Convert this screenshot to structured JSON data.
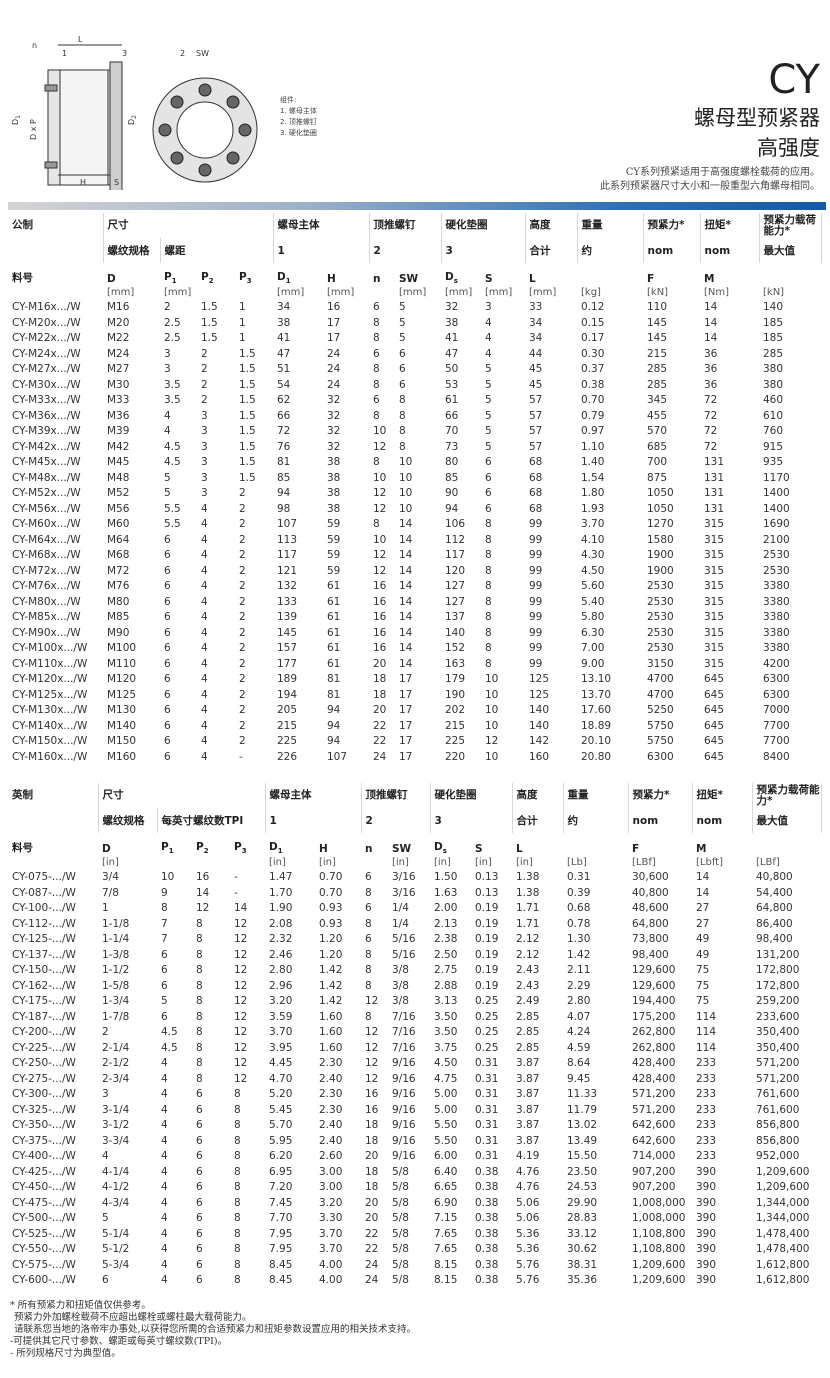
{
  "header": {
    "title": "CY",
    "subtitle": [
      "螺母型预紧器",
      "高强度"
    ],
    "description": [
      "CY系列预紧适用于高强度螺栓载荷的应用。",
      "此系列预紧器尺寸大小和一般重型六角螺母相同。"
    ]
  },
  "diagram": {
    "labels": {
      "n": "n",
      "one": "1",
      "L": "L",
      "three": "3",
      "two": "2",
      "SW": "SW",
      "D1": {
        "t": "D",
        "sub": "1"
      },
      "DxP": "D x P",
      "D2": {
        "t": "D",
        "sub": "2"
      },
      "H": "H",
      "S": "S"
    },
    "legend": [
      "组件:",
      "1.  螺母主体",
      "2.  顶推螺钉",
      "3.  硬化垫圈"
    ]
  },
  "metric": {
    "group_headers": [
      "公制",
      "尺寸",
      "螺母主体",
      "顶推螺钉",
      "硬化垫圈",
      "高度",
      "重量",
      "预紧力*",
      "扭矩*",
      "预紧力载荷能力*"
    ],
    "sub_headers": [
      "螺纹规格",
      "螺距",
      "1",
      "2",
      "3",
      "合计",
      "约",
      "nom",
      "nom",
      "最大值"
    ],
    "symbols": [
      {
        "t": "料号"
      },
      {
        "t": "D"
      },
      {
        "t": "P",
        "sub": "1"
      },
      {
        "t": "P",
        "sub": "2"
      },
      {
        "t": "P",
        "sub": "3"
      },
      {
        "t": "D",
        "sub": "1"
      },
      {
        "t": "H"
      },
      {
        "t": "n"
      },
      {
        "t": "SW"
      },
      {
        "t": "D",
        "sub": "s"
      },
      {
        "t": "S"
      },
      {
        "t": "L"
      },
      null,
      {
        "t": "F"
      },
      {
        "t": "M"
      },
      null
    ],
    "units": [
      null,
      "[mm]",
      "[mm]",
      null,
      null,
      "[mm]",
      "[mm]",
      null,
      "[mm]",
      "[mm]",
      "[mm]",
      "[mm]",
      "[kg]",
      "[kN]",
      "[Nm]",
      "[kN]"
    ],
    "rows": [
      [
        "CY-M16x.../W",
        "M16",
        "2",
        "1.5",
        "1",
        "34",
        "16",
        "6",
        "5",
        "32",
        "3",
        "33",
        "0.12",
        "110",
        "14",
        "140"
      ],
      [
        "CY-M20x.../W",
        "M20",
        "2.5",
        "1.5",
        "1",
        "38",
        "17",
        "8",
        "5",
        "38",
        "4",
        "34",
        "0.15",
        "145",
        "14",
        "185"
      ],
      [
        "CY-M22x.../W",
        "M22",
        "2.5",
        "1.5",
        "1",
        "41",
        "17",
        "8",
        "5",
        "41",
        "4",
        "34",
        "0.17",
        "145",
        "14",
        "185"
      ],
      [
        "CY-M24x.../W",
        "M24",
        "3",
        "2",
        "1.5",
        "47",
        "24",
        "6",
        "6",
        "47",
        "4",
        "44",
        "0.30",
        "215",
        "36",
        "285"
      ],
      [
        "CY-M27x.../W",
        "M27",
        "3",
        "2",
        "1.5",
        "51",
        "24",
        "8",
        "6",
        "50",
        "5",
        "45",
        "0.37",
        "285",
        "36",
        "380"
      ],
      [
        "CY-M30x.../W",
        "M30",
        "3.5",
        "2",
        "1.5",
        "54",
        "24",
        "8",
        "6",
        "53",
        "5",
        "45",
        "0.38",
        "285",
        "36",
        "380"
      ],
      [
        "CY-M33x.../W",
        "M33",
        "3.5",
        "2",
        "1.5",
        "62",
        "32",
        "6",
        "8",
        "61",
        "5",
        "57",
        "0.70",
        "345",
        "72",
        "460"
      ],
      [
        "CY-M36x.../W",
        "M36",
        "4",
        "3",
        "1.5",
        "66",
        "32",
        "8",
        "8",
        "66",
        "5",
        "57",
        "0.79",
        "455",
        "72",
        "610"
      ],
      [
        "CY-M39x.../W",
        "M39",
        "4",
        "3",
        "1.5",
        "72",
        "32",
        "10",
        "8",
        "70",
        "5",
        "57",
        "0.97",
        "570",
        "72",
        "760"
      ],
      [
        "CY-M42x.../W",
        "M42",
        "4.5",
        "3",
        "1.5",
        "76",
        "32",
        "12",
        "8",
        "73",
        "5",
        "57",
        "1.10",
        "685",
        "72",
        "915"
      ],
      [
        "CY-M45x.../W",
        "M45",
        "4.5",
        "3",
        "1.5",
        "81",
        "38",
        "8",
        "10",
        "80",
        "6",
        "68",
        "1.40",
        "700",
        "131",
        "935"
      ],
      [
        "CY-M48x.../W",
        "M48",
        "5",
        "3",
        "1.5",
        "85",
        "38",
        "10",
        "10",
        "85",
        "6",
        "68",
        "1.54",
        "875",
        "131",
        "1170"
      ],
      [
        "CY-M52x.../W",
        "M52",
        "5",
        "3",
        "2",
        "94",
        "38",
        "12",
        "10",
        "90",
        "6",
        "68",
        "1.80",
        "1050",
        "131",
        "1400"
      ],
      [
        "CY-M56x.../W",
        "M56",
        "5.5",
        "4",
        "2",
        "98",
        "38",
        "12",
        "10",
        "94",
        "6",
        "68",
        "1.93",
        "1050",
        "131",
        "1400"
      ],
      [
        "CY-M60x.../W",
        "M60",
        "5.5",
        "4",
        "2",
        "107",
        "59",
        "8",
        "14",
        "106",
        "8",
        "99",
        "3.70",
        "1270",
        "315",
        "1690"
      ],
      [
        "CY-M64x.../W",
        "M64",
        "6",
        "4",
        "2",
        "113",
        "59",
        "10",
        "14",
        "112",
        "8",
        "99",
        "4.10",
        "1580",
        "315",
        "2100"
      ],
      [
        "CY-M68x.../W",
        "M68",
        "6",
        "4",
        "2",
        "117",
        "59",
        "12",
        "14",
        "117",
        "8",
        "99",
        "4.30",
        "1900",
        "315",
        "2530"
      ],
      [
        "CY-M72x.../W",
        "M72",
        "6",
        "4",
        "2",
        "121",
        "59",
        "12",
        "14",
        "120",
        "8",
        "99",
        "4.50",
        "1900",
        "315",
        "2530"
      ],
      [
        "CY-M76x.../W",
        "M76",
        "6",
        "4",
        "2",
        "132",
        "61",
        "16",
        "14",
        "127",
        "8",
        "99",
        "5.60",
        "2530",
        "315",
        "3380"
      ],
      [
        "CY-M80x.../W",
        "M80",
        "6",
        "4",
        "2",
        "133",
        "61",
        "16",
        "14",
        "127",
        "8",
        "99",
        "5.40",
        "2530",
        "315",
        "3380"
      ],
      [
        "CY-M85x.../W",
        "M85",
        "6",
        "4",
        "2",
        "139",
        "61",
        "16",
        "14",
        "137",
        "8",
        "99",
        "5.80",
        "2530",
        "315",
        "3380"
      ],
      [
        "CY-M90x.../W",
        "M90",
        "6",
        "4",
        "2",
        "145",
        "61",
        "16",
        "14",
        "140",
        "8",
        "99",
        "6.30",
        "2530",
        "315",
        "3380"
      ],
      [
        "CY-M100x.../W",
        "M100",
        "6",
        "4",
        "2",
        "157",
        "61",
        "16",
        "14",
        "152",
        "8",
        "99",
        "7.00",
        "2530",
        "315",
        "3380"
      ],
      [
        "CY-M110x.../W",
        "M110",
        "6",
        "4",
        "2",
        "177",
        "61",
        "20",
        "14",
        "163",
        "8",
        "99",
        "9.00",
        "3150",
        "315",
        "4200"
      ],
      [
        "CY-M120x.../W",
        "M120",
        "6",
        "4",
        "2",
        "189",
        "81",
        "18",
        "17",
        "179",
        "10",
        "125",
        "13.10",
        "4700",
        "645",
        "6300"
      ],
      [
        "CY-M125x.../W",
        "M125",
        "6",
        "4",
        "2",
        "194",
        "81",
        "18",
        "17",
        "190",
        "10",
        "125",
        "13.70",
        "4700",
        "645",
        "6300"
      ],
      [
        "CY-M130x.../W",
        "M130",
        "6",
        "4",
        "2",
        "205",
        "94",
        "20",
        "17",
        "202",
        "10",
        "140",
        "17.60",
        "5250",
        "645",
        "7000"
      ],
      [
        "CY-M140x.../W",
        "M140",
        "6",
        "4",
        "2",
        "215",
        "94",
        "22",
        "17",
        "215",
        "10",
        "140",
        "18.89",
        "5750",
        "645",
        "7700"
      ],
      [
        "CY-M150x.../W",
        "M150",
        "6",
        "4",
        "2",
        "225",
        "94",
        "22",
        "17",
        "225",
        "12",
        "142",
        "20.10",
        "5750",
        "645",
        "7700"
      ],
      [
        "CY-M160x.../W",
        "M160",
        "6",
        "4",
        "-",
        "226",
        "107",
        "24",
        "17",
        "220",
        "10",
        "160",
        "20.80",
        "6300",
        "645",
        "8400"
      ]
    ]
  },
  "imperial": {
    "group_headers": [
      "英制",
      "尺寸",
      "螺母主体",
      "顶推螺钉",
      "硬化垫圈",
      "高度",
      "重量",
      "预紧力*",
      "扭矩*",
      "预紧力载荷能力*"
    ],
    "sub_headers": [
      "螺纹规格",
      "每英寸螺纹数TPI",
      "1",
      "2",
      "3",
      "合计",
      "约",
      "nom",
      "nom",
      "最大值"
    ],
    "symbols": [
      {
        "t": "料号"
      },
      {
        "t": "D"
      },
      {
        "t": "P",
        "sub": "1"
      },
      {
        "t": "P",
        "sub": "2"
      },
      {
        "t": "P",
        "sub": "3"
      },
      {
        "t": "D",
        "sub": "1"
      },
      {
        "t": "H"
      },
      {
        "t": "n"
      },
      {
        "t": "SW"
      },
      {
        "t": "D",
        "sub": "s"
      },
      {
        "t": "S"
      },
      {
        "t": "L"
      },
      null,
      {
        "t": "F"
      },
      {
        "t": "M"
      },
      null
    ],
    "units": [
      null,
      "[in]",
      null,
      null,
      null,
      "[in]",
      "[in]",
      null,
      "[in]",
      "[in]",
      "[in]",
      "[in]",
      "[Lb]",
      "[LBf]",
      "[Lbft]",
      "[LBf]"
    ],
    "rows": [
      [
        "CY-075-.../W",
        "3/4",
        "10",
        "16",
        "-",
        "1.47",
        "0.70",
        "6",
        "3/16",
        "1.50",
        "0.13",
        "1.38",
        "0.31",
        "30,600",
        "14",
        "40,800"
      ],
      [
        "CY-087-.../W",
        "7/8",
        "9",
        "14",
        "-",
        "1.70",
        "0.70",
        "8",
        "3/16",
        "1.63",
        "0.13",
        "1.38",
        "0.39",
        "40,800",
        "14",
        "54,400"
      ],
      [
        "CY-100-.../W",
        "1",
        "8",
        "12",
        "14",
        "1.90",
        "0.93",
        "6",
        "1/4",
        "2.00",
        "0.19",
        "1.71",
        "0.68",
        "48,600",
        "27",
        "64,800"
      ],
      [
        "CY-112-.../W",
        "1-1/8",
        "7",
        "8",
        "12",
        "2.08",
        "0.93",
        "8",
        "1/4",
        "2.13",
        "0.19",
        "1.71",
        "0.78",
        "64,800",
        "27",
        "86,400"
      ],
      [
        "CY-125-.../W",
        "1-1/4",
        "7",
        "8",
        "12",
        "2.32",
        "1.20",
        "6",
        "5/16",
        "2.38",
        "0.19",
        "2.12",
        "1.30",
        "73,800",
        "49",
        "98,400"
      ],
      [
        "CY-137-.../W",
        "1-3/8",
        "6",
        "8",
        "12",
        "2.46",
        "1.20",
        "8",
        "5/16",
        "2.50",
        "0.19",
        "2.12",
        "1.42",
        "98,400",
        "49",
        "131,200"
      ],
      [
        "CY-150-.../W",
        "1-1/2",
        "6",
        "8",
        "12",
        "2.80",
        "1.42",
        "8",
        "3/8",
        "2.75",
        "0.19",
        "2.43",
        "2.11",
        "129,600",
        "75",
        "172,800"
      ],
      [
        "CY-162-.../W",
        "1-5/8",
        "6",
        "8",
        "12",
        "2.96",
        "1.42",
        "8",
        "3/8",
        "2.88",
        "0.19",
        "2.43",
        "2.29",
        "129,600",
        "75",
        "172,800"
      ],
      [
        "CY-175-.../W",
        "1-3/4",
        "5",
        "8",
        "12",
        "3.20",
        "1.42",
        "12",
        "3/8",
        "3.13",
        "0.25",
        "2.49",
        "2.80",
        "194,400",
        "75",
        "259,200"
      ],
      [
        "CY-187-.../W",
        "1-7/8",
        "6",
        "8",
        "12",
        "3.59",
        "1.60",
        "8",
        "7/16",
        "3.50",
        "0.25",
        "2.85",
        "4.07",
        "175,200",
        "114",
        "233,600"
      ],
      [
        "CY-200-.../W",
        "2",
        "4.5",
        "8",
        "12",
        "3.70",
        "1.60",
        "12",
        "7/16",
        "3.50",
        "0.25",
        "2.85",
        "4.24",
        "262,800",
        "114",
        "350,400"
      ],
      [
        "CY-225-.../W",
        "2-1/4",
        "4.5",
        "8",
        "12",
        "3.95",
        "1.60",
        "12",
        "7/16",
        "3.75",
        "0.25",
        "2.85",
        "4.59",
        "262,800",
        "114",
        "350,400"
      ],
      [
        "CY-250-.../W",
        "2-1/2",
        "4",
        "8",
        "12",
        "4.45",
        "2.30",
        "12",
        "9/16",
        "4.50",
        "0.31",
        "3.87",
        "8.64",
        "428,400",
        "233",
        "571,200"
      ],
      [
        "CY-275-.../W",
        "2-3/4",
        "4",
        "8",
        "12",
        "4.70",
        "2.40",
        "12",
        "9/16",
        "4.75",
        "0.31",
        "3.87",
        "9.45",
        "428,400",
        "233",
        "571,200"
      ],
      [
        "CY-300-.../W",
        "3",
        "4",
        "6",
        "8",
        "5.20",
        "2.30",
        "16",
        "9/16",
        "5.00",
        "0.31",
        "3.87",
        "11.33",
        "571,200",
        "233",
        "761,600"
      ],
      [
        "CY-325-.../W",
        "3-1/4",
        "4",
        "6",
        "8",
        "5.45",
        "2.30",
        "16",
        "9/16",
        "5.00",
        "0.31",
        "3.87",
        "11.79",
        "571,200",
        "233",
        "761,600"
      ],
      [
        "CY-350-.../W",
        "3-1/2",
        "4",
        "6",
        "8",
        "5.70",
        "2.40",
        "18",
        "9/16",
        "5.50",
        "0.31",
        "3.87",
        "13.02",
        "642,600",
        "233",
        "856,800"
      ],
      [
        "CY-375-.../W",
        "3-3/4",
        "4",
        "6",
        "8",
        "5.95",
        "2.40",
        "18",
        "9/16",
        "5.50",
        "0.31",
        "3.87",
        "13.49",
        "642,600",
        "233",
        "856,800"
      ],
      [
        "CY-400-.../W",
        "4",
        "4",
        "6",
        "8",
        "6.20",
        "2.60",
        "20",
        "9/16",
        "6.00",
        "0.31",
        "4.19",
        "15.50",
        "714,000",
        "233",
        "952,000"
      ],
      [
        "CY-425-.../W",
        "4-1/4",
        "4",
        "6",
        "8",
        "6.95",
        "3.00",
        "18",
        "5/8",
        "6.40",
        "0.38",
        "4.76",
        "23.50",
        "907,200",
        "390",
        "1,209,600"
      ],
      [
        "CY-450-.../W",
        "4-1/2",
        "4",
        "6",
        "8",
        "7.20",
        "3.00",
        "18",
        "5/8",
        "6.65",
        "0.38",
        "4.76",
        "24.53",
        "907,200",
        "390",
        "1,209,600"
      ],
      [
        "CY-475-.../W",
        "4-3/4",
        "4",
        "6",
        "8",
        "7.45",
        "3.20",
        "20",
        "5/8",
        "6.90",
        "0.38",
        "5.06",
        "29.90",
        "1,008,000",
        "390",
        "1,344,000"
      ],
      [
        "CY-500-.../W",
        "5",
        "4",
        "6",
        "8",
        "7.70",
        "3.30",
        "20",
        "5/8",
        "7.15",
        "0.38",
        "5.06",
        "28.83",
        "1,008,000",
        "390",
        "1,344,000"
      ],
      [
        "CY-525-.../W",
        "5-1/4",
        "4",
        "6",
        "8",
        "7.95",
        "3.70",
        "22",
        "5/8",
        "7.65",
        "0.38",
        "5.36",
        "33.12",
        "1,108,800",
        "390",
        "1,478,400"
      ],
      [
        "CY-550-.../W",
        "5-1/2",
        "4",
        "6",
        "8",
        "7.95",
        "3.70",
        "22",
        "5/8",
        "7.65",
        "0.38",
        "5.36",
        "30.62",
        "1,108,800",
        "390",
        "1,478,400"
      ],
      [
        "CY-575-.../W",
        "5-3/4",
        "4",
        "6",
        "8",
        "8.45",
        "4.00",
        "24",
        "5/8",
        "8.15",
        "0.38",
        "5.76",
        "38.31",
        "1,209,600",
        "390",
        "1,612,800"
      ],
      [
        "CY-600-.../W",
        "6",
        "4",
        "6",
        "8",
        "8.45",
        "4.00",
        "24",
        "5/8",
        "8.15",
        "0.38",
        "5.76",
        "35.36",
        "1,209,600",
        "390",
        "1,612,800"
      ]
    ]
  },
  "footnotes": [
    "* 所有预紧力和扭矩值仅供参考。",
    "预紧力外加螺栓载荷不应超出螺栓或螺柱最大载荷能力。",
    "请联系您当地的洛帝牢办事处,以获得您所需的合适预紧力和扭矩参数设置应用的相关技术支持。",
    "-可提供其它尺寸参数、螺距或每英寸螺纹数(TPI)。",
    "- 所列规格尺寸为典型值。"
  ]
}
